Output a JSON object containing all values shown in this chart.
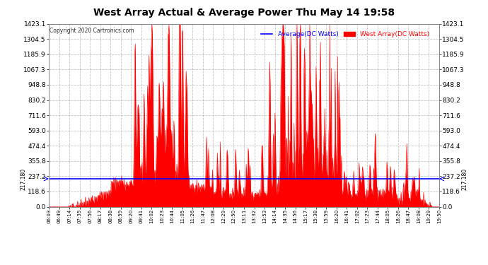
{
  "title": "West Array Actual & Average Power Thu May 14 19:58",
  "copyright": "Copyright 2020 Cartronics.com",
  "legend_average": "Average(DC Watts)",
  "legend_west": "West Array(DC Watts)",
  "average_value": 217.18,
  "ymin": 0.0,
  "ymax": 1423.1,
  "yticks": [
    0.0,
    118.6,
    237.2,
    355.8,
    474.4,
    593.0,
    711.6,
    830.2,
    948.8,
    1067.3,
    1185.9,
    1304.5,
    1423.1
  ],
  "bg_color": "#ffffff",
  "plot_bg": "#ffffff",
  "grid_color": "#aaaaaa",
  "fill_color": "#ff0000",
  "avg_line_color": "#0000ff",
  "title_color": "#000000",
  "xtick_labels": [
    "06:03",
    "06:49",
    "07:14",
    "07:35",
    "07:56",
    "08:17",
    "08:38",
    "08:59",
    "09:20",
    "09:41",
    "10:02",
    "10:23",
    "10:44",
    "11:05",
    "11:26",
    "11:47",
    "12:08",
    "12:29",
    "12:50",
    "13:11",
    "13:32",
    "13:53",
    "14:14",
    "14:35",
    "14:56",
    "15:17",
    "15:38",
    "15:59",
    "16:20",
    "16:41",
    "17:02",
    "17:23",
    "17:44",
    "18:05",
    "18:26",
    "18:47",
    "19:08",
    "19:29",
    "19:50"
  ],
  "seed": 1234,
  "n_points": 800
}
